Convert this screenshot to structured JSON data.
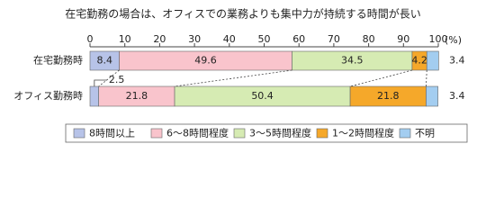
{
  "chart_data": {
    "type": "stacked_barh",
    "title": "在宅勤務の場合は、オフィスでの業務よりも集中力が持続する時間が長い",
    "x_unit_label": "(%)",
    "categories": [
      "在宅勤務時",
      "オフィス勤務時"
    ],
    "series": [
      {
        "name": "8時間以上",
        "color": "#b7c3e8",
        "values": [
          8.4,
          2.5
        ]
      },
      {
        "name": "6～8時間程度",
        "color": "#f9c4cc",
        "values": [
          49.6,
          21.8
        ]
      },
      {
        "name": "3～5時間程度",
        "color": "#d6ebb3",
        "values": [
          34.5,
          50.4
        ]
      },
      {
        "name": "1～2時間程度",
        "color": "#f5a82a",
        "values": [
          4.2,
          21.8
        ]
      },
      {
        "name": "不明",
        "color": "#a3cdf0",
        "values": [
          3.4,
          3.4
        ]
      }
    ],
    "xlim": [
      0,
      100
    ],
    "xticks": [
      0,
      10,
      20,
      30,
      40,
      50,
      60,
      70,
      80,
      90,
      100
    ]
  }
}
